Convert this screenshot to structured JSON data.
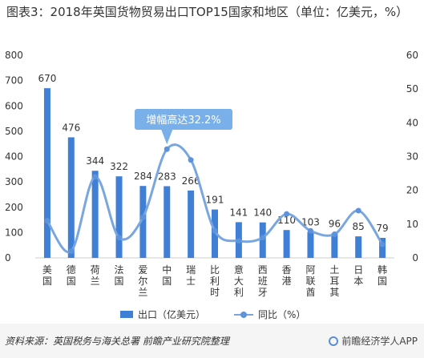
{
  "title": "图表3：2018年英国货物贸易出口TOP15国家和地区（单位：亿美元，%）",
  "chart_data": {
    "type": "bar",
    "categories": [
      "美国",
      "德国",
      "荷兰",
      "法国",
      "爱尔兰",
      "中国",
      "瑞士",
      "比利时",
      "意大利",
      "西班牙",
      "香港",
      "阿联酋",
      "土耳其",
      "日本",
      "韩国"
    ],
    "category_labels": [
      [
        "美",
        "国"
      ],
      [
        "德",
        "国"
      ],
      [
        "荷",
        "兰"
      ],
      [
        "法",
        "国"
      ],
      [
        "爱",
        "尔",
        "兰"
      ],
      [
        "中",
        "国"
      ],
      [
        "瑞",
        "士"
      ],
      [
        "比",
        "利",
        "时"
      ],
      [
        "意",
        "大",
        "利"
      ],
      [
        "西",
        "班",
        "牙"
      ],
      [
        "香",
        "港"
      ],
      [
        "阿",
        "联",
        "酋"
      ],
      [
        "土",
        "耳",
        "其"
      ],
      [
        "日",
        "本"
      ],
      [
        "韩",
        "国"
      ]
    ],
    "series": [
      {
        "name": "出口（亿美元）",
        "type": "bar",
        "axis": "left",
        "values": [
          670,
          476,
          344,
          322,
          284,
          283,
          266,
          191,
          141,
          140,
          110,
          103,
          96,
          85,
          79
        ]
      },
      {
        "name": "同比（%）",
        "type": "line",
        "axis": "right",
        "values": [
          11,
          2,
          24,
          6,
          12,
          32.2,
          29,
          8,
          5,
          6,
          13,
          8,
          7,
          14,
          4
        ]
      }
    ],
    "ylim_left": [
      0,
      800
    ],
    "yticks_left": [
      0,
      100,
      200,
      300,
      400,
      500,
      600,
      700,
      800
    ],
    "ylim_right": [
      0,
      60
    ],
    "yticks_right": [
      0,
      10,
      20,
      30,
      40,
      50,
      60
    ],
    "annotation": {
      "text": "增幅高达32.2%",
      "category": "中国"
    },
    "colors": {
      "bar": "#3f7fd6",
      "line": "#7aa6e0",
      "marker": "#5d92dc",
      "callout": "#7ab0ea"
    }
  },
  "legend": {
    "bar_label": "出口（亿美元）",
    "line_label": "同比（%）"
  },
  "footer": {
    "source": "资料来源：英国税务与海关总署 前瞻产业研究院整理",
    "brand": "前瞻经济学人APP"
  }
}
